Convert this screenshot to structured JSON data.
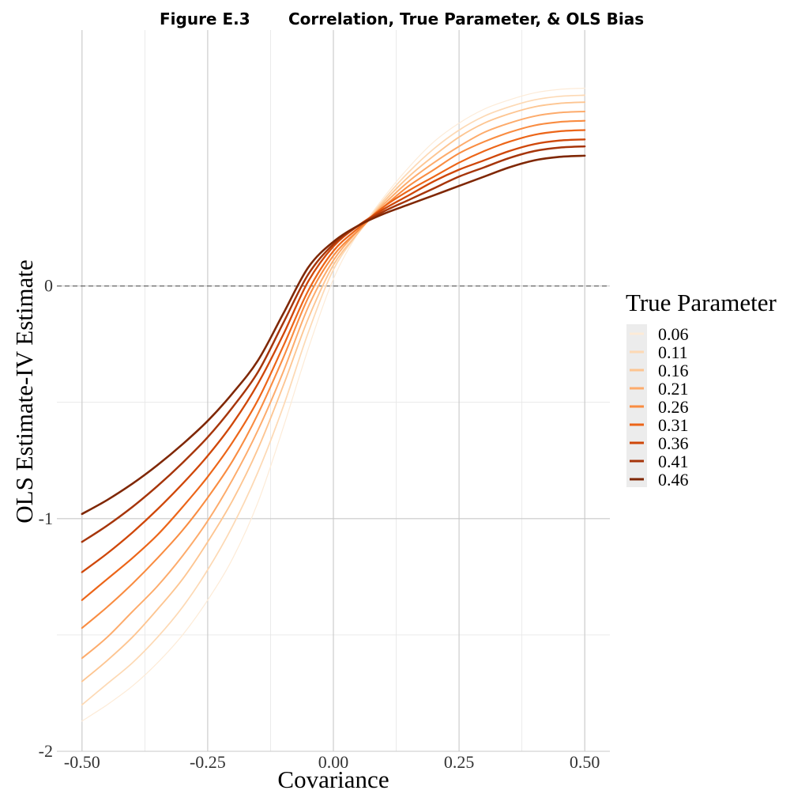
{
  "figure": {
    "label": "Figure E.3",
    "title": "Correlation, True Parameter, & OLS Bias"
  },
  "chart_data": {
    "type": "line",
    "xlabel": "Covariance",
    "ylabel": "OLS Estimate-IV Estimate",
    "xlim": [
      -0.55,
      0.55
    ],
    "ylim": [
      -2.0,
      1.1
    ],
    "x_ticks": [
      -0.5,
      -0.25,
      0.0,
      0.25,
      0.5
    ],
    "x_tick_labels": [
      "-0.50",
      "-0.25",
      "0.00",
      "0.25",
      "0.50"
    ],
    "y_ticks": [
      -2,
      -1,
      0
    ],
    "y_tick_labels": [
      "-2",
      "-1",
      "0"
    ],
    "grid": true,
    "reference_line": {
      "y": 0,
      "style": "dashed"
    },
    "legend": {
      "title": "True Parameter",
      "position": "right"
    },
    "x": [
      -0.5,
      -0.45,
      -0.4,
      -0.35,
      -0.3,
      -0.25,
      -0.2,
      -0.15,
      -0.1,
      -0.05,
      0.0,
      0.05,
      0.1,
      0.15,
      0.2,
      0.25,
      0.3,
      0.35,
      0.4,
      0.45,
      0.5
    ],
    "series": [
      {
        "name": "0.06",
        "color": "#fdebd7",
        "values": [
          -1.87,
          -1.8,
          -1.72,
          -1.62,
          -1.5,
          -1.35,
          -1.17,
          -0.93,
          -0.61,
          -0.27,
          0.03,
          0.23,
          0.38,
          0.51,
          0.62,
          0.7,
          0.76,
          0.8,
          0.83,
          0.845,
          0.85
        ]
      },
      {
        "name": "0.11",
        "color": "#fdd9b4",
        "values": [
          -1.8,
          -1.71,
          -1.62,
          -1.51,
          -1.38,
          -1.22,
          -1.03,
          -0.8,
          -0.52,
          -0.2,
          0.07,
          0.23,
          0.37,
          0.49,
          0.59,
          0.67,
          0.73,
          0.77,
          0.8,
          0.815,
          0.82
        ]
      },
      {
        "name": "0.16",
        "color": "#fdc591",
        "values": [
          -1.7,
          -1.61,
          -1.51,
          -1.39,
          -1.26,
          -1.1,
          -0.92,
          -0.7,
          -0.43,
          -0.14,
          0.09,
          0.23,
          0.36,
          0.47,
          0.56,
          0.64,
          0.7,
          0.74,
          0.77,
          0.785,
          0.79
        ]
      },
      {
        "name": "0.21",
        "color": "#fdab6b",
        "values": [
          -1.6,
          -1.51,
          -1.4,
          -1.29,
          -1.16,
          -1.01,
          -0.83,
          -0.62,
          -0.37,
          -0.09,
          0.11,
          0.24,
          0.35,
          0.45,
          0.53,
          0.6,
          0.66,
          0.7,
          0.73,
          0.745,
          0.75
        ]
      },
      {
        "name": "0.26",
        "color": "#f98c41",
        "values": [
          -1.47,
          -1.38,
          -1.28,
          -1.17,
          -1.05,
          -0.91,
          -0.75,
          -0.55,
          -0.31,
          -0.05,
          0.13,
          0.24,
          0.34,
          0.43,
          0.5,
          0.57,
          0.62,
          0.66,
          0.69,
          0.705,
          0.71
        ]
      },
      {
        "name": "0.31",
        "color": "#ec6518",
        "values": [
          -1.35,
          -1.26,
          -1.17,
          -1.07,
          -0.95,
          -0.82,
          -0.67,
          -0.49,
          -0.26,
          -0.02,
          0.15,
          0.25,
          0.34,
          0.41,
          0.47,
          0.53,
          0.58,
          0.62,
          0.65,
          0.665,
          0.67
        ]
      },
      {
        "name": "0.36",
        "color": "#cf4709",
        "values": [
          -1.23,
          -1.15,
          -1.06,
          -0.96,
          -0.85,
          -0.73,
          -0.59,
          -0.42,
          -0.21,
          0.02,
          0.17,
          0.26,
          0.33,
          0.39,
          0.45,
          0.5,
          0.54,
          0.58,
          0.61,
          0.625,
          0.63
        ]
      },
      {
        "name": "0.41",
        "color": "#a6350a",
        "values": [
          -1.1,
          -1.03,
          -0.95,
          -0.86,
          -0.76,
          -0.65,
          -0.52,
          -0.37,
          -0.16,
          0.05,
          0.18,
          0.26,
          0.32,
          0.37,
          0.42,
          0.47,
          0.51,
          0.55,
          0.58,
          0.595,
          0.6
        ]
      },
      {
        "name": "0.46",
        "color": "#7f2704",
        "values": [
          -0.98,
          -0.92,
          -0.85,
          -0.77,
          -0.68,
          -0.58,
          -0.46,
          -0.32,
          -0.12,
          0.08,
          0.19,
          0.26,
          0.31,
          0.35,
          0.39,
          0.43,
          0.47,
          0.51,
          0.54,
          0.555,
          0.56
        ]
      }
    ]
  }
}
